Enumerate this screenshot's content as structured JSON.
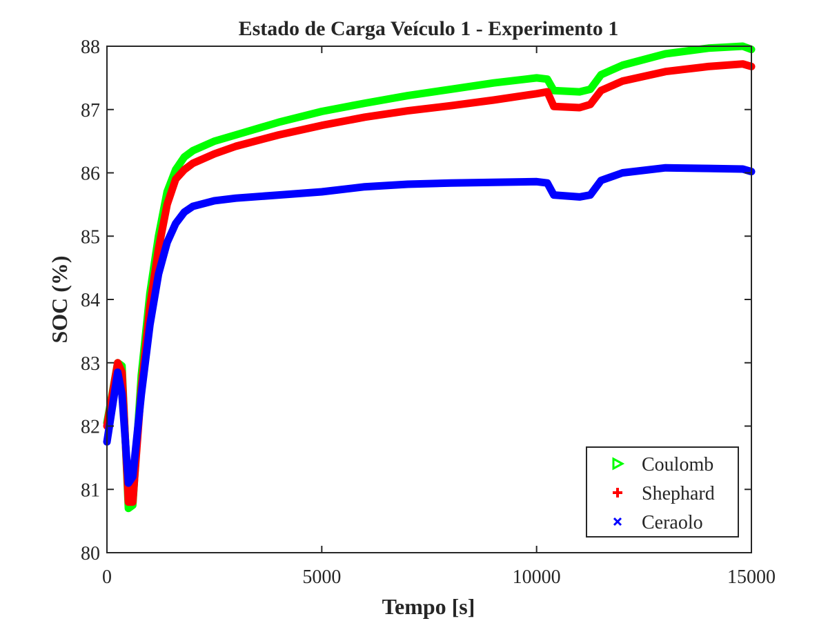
{
  "chart_data": {
    "type": "line",
    "title": "Estado de Carga Veículo 1 - Experimento 1",
    "xlabel": "Tempo [s]",
    "ylabel": "SOC (%)",
    "xlim": [
      0,
      15000
    ],
    "ylim": [
      80,
      88
    ],
    "xticks": [
      0,
      5000,
      10000,
      15000
    ],
    "yticks": [
      80,
      81,
      82,
      83,
      84,
      85,
      86,
      87,
      88
    ],
    "grid": false,
    "legend_position": "bottom-right",
    "series": [
      {
        "name": "Coulomb",
        "color": "#00ff00",
        "marker": "triangle-right",
        "points": [
          [
            0,
            82.05
          ],
          [
            250,
            83.0
          ],
          [
            350,
            82.95
          ],
          [
            500,
            80.7
          ],
          [
            600,
            80.75
          ],
          [
            800,
            82.8
          ],
          [
            1000,
            84.1
          ],
          [
            1200,
            85.0
          ],
          [
            1400,
            85.7
          ],
          [
            1600,
            86.05
          ],
          [
            1800,
            86.25
          ],
          [
            2000,
            86.35
          ],
          [
            2500,
            86.5
          ],
          [
            3000,
            86.6
          ],
          [
            4000,
            86.8
          ],
          [
            5000,
            86.97
          ],
          [
            6000,
            87.1
          ],
          [
            7000,
            87.22
          ],
          [
            8000,
            87.32
          ],
          [
            9000,
            87.42
          ],
          [
            10000,
            87.5
          ],
          [
            10250,
            87.48
          ],
          [
            10400,
            87.3
          ],
          [
            11000,
            87.28
          ],
          [
            11250,
            87.32
          ],
          [
            11500,
            87.55
          ],
          [
            12000,
            87.7
          ],
          [
            13000,
            87.88
          ],
          [
            14000,
            87.97
          ],
          [
            14800,
            88.0
          ],
          [
            15000,
            87.95
          ]
        ]
      },
      {
        "name": "Shephard",
        "color": "#ff0000",
        "marker": "plus",
        "points": [
          [
            0,
            82.0
          ],
          [
            250,
            83.0
          ],
          [
            350,
            82.85
          ],
          [
            500,
            80.8
          ],
          [
            600,
            80.8
          ],
          [
            800,
            82.6
          ],
          [
            1000,
            83.9
          ],
          [
            1200,
            84.8
          ],
          [
            1400,
            85.5
          ],
          [
            1600,
            85.9
          ],
          [
            1800,
            86.05
          ],
          [
            2000,
            86.15
          ],
          [
            2500,
            86.3
          ],
          [
            3000,
            86.42
          ],
          [
            4000,
            86.6
          ],
          [
            5000,
            86.75
          ],
          [
            6000,
            86.88
          ],
          [
            7000,
            86.98
          ],
          [
            8000,
            87.06
          ],
          [
            9000,
            87.15
          ],
          [
            10000,
            87.25
          ],
          [
            10250,
            87.28
          ],
          [
            10400,
            87.05
          ],
          [
            11000,
            87.03
          ],
          [
            11250,
            87.08
          ],
          [
            11500,
            87.3
          ],
          [
            12000,
            87.45
          ],
          [
            13000,
            87.6
          ],
          [
            14000,
            87.68
          ],
          [
            14800,
            87.72
          ],
          [
            15000,
            87.68
          ]
        ]
      },
      {
        "name": "Ceraolo",
        "color": "#0000ff",
        "marker": "x",
        "points": [
          [
            0,
            81.75
          ],
          [
            250,
            82.85
          ],
          [
            350,
            82.5
          ],
          [
            500,
            81.1
          ],
          [
            600,
            81.2
          ],
          [
            800,
            82.5
          ],
          [
            1000,
            83.6
          ],
          [
            1200,
            84.4
          ],
          [
            1400,
            84.9
          ],
          [
            1600,
            85.2
          ],
          [
            1800,
            85.38
          ],
          [
            2000,
            85.47
          ],
          [
            2500,
            85.56
          ],
          [
            3000,
            85.6
          ],
          [
            4000,
            85.65
          ],
          [
            5000,
            85.7
          ],
          [
            6000,
            85.78
          ],
          [
            7000,
            85.82
          ],
          [
            8000,
            85.84
          ],
          [
            9000,
            85.85
          ],
          [
            10000,
            85.86
          ],
          [
            10250,
            85.84
          ],
          [
            10400,
            85.65
          ],
          [
            11000,
            85.62
          ],
          [
            11250,
            85.65
          ],
          [
            11500,
            85.88
          ],
          [
            12000,
            86.0
          ],
          [
            13000,
            86.08
          ],
          [
            14000,
            86.07
          ],
          [
            14800,
            86.06
          ],
          [
            15000,
            86.02
          ]
        ]
      }
    ]
  }
}
